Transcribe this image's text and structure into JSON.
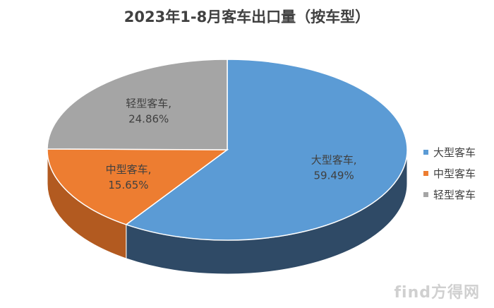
{
  "title": "2023年1-8月客车出口量（按车型）",
  "chart_data": {
    "type": "pie",
    "style": "3d",
    "slices": [
      {
        "name": "大型客车",
        "value": 59.49,
        "label": "大型客车,",
        "pct_label": "59.49%",
        "color": "#5b9bd5",
        "side": "#2f4a66"
      },
      {
        "name": "中型客车",
        "value": 15.65,
        "label": "中型客车,",
        "pct_label": "15.65%",
        "color": "#ed7d31",
        "side": "#b25a20"
      },
      {
        "name": "轻型客车",
        "value": 24.86,
        "label": "轻型客车,",
        "pct_label": "24.86%",
        "color": "#a5a5a5",
        "side": "#7a7a7a"
      }
    ],
    "legend_position": "right"
  },
  "legend": [
    "大型客车",
    "中型客车",
    "轻型客车"
  ],
  "watermark": "find方得网"
}
